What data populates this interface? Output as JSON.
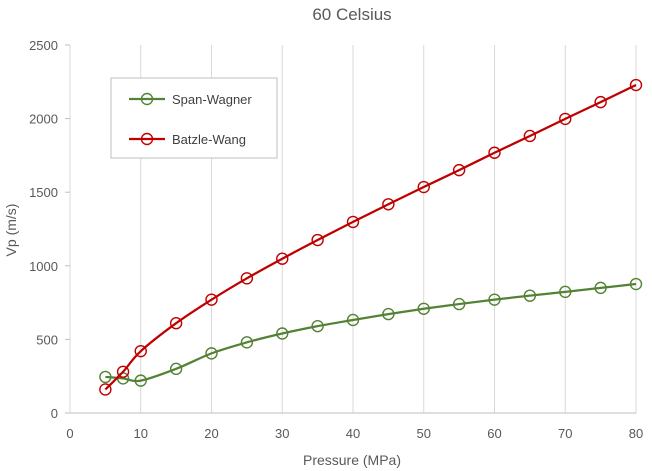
{
  "chart_data": {
    "type": "line",
    "title": "60 Celsius",
    "xlabel": "Pressure (MPa)",
    "ylabel": "Vp (m/s)",
    "xlim": [
      0,
      80
    ],
    "ylim": [
      0,
      2500
    ],
    "xticks": [
      0,
      10,
      20,
      30,
      40,
      50,
      60,
      70,
      80
    ],
    "yticks": [
      0,
      500,
      1000,
      1500,
      2000,
      2500
    ],
    "grid": "vertical",
    "legend": "top-left",
    "series": [
      {
        "name": "Span-Wagner",
        "color": "#548235",
        "marker": "open-circle",
        "x": [
          5,
          7.5,
          10,
          15,
          20,
          25,
          30,
          35,
          40,
          45,
          50,
          55,
          60,
          65,
          70,
          75,
          80
        ],
        "values": [
          245,
          235,
          220,
          300,
          405,
          480,
          540,
          590,
          632,
          672,
          708,
          740,
          770,
          797,
          823,
          850,
          876
        ]
      },
      {
        "name": "Batzle-Wang",
        "color": "#C00000",
        "marker": "open-circle",
        "x": [
          5,
          7.5,
          10,
          15,
          20,
          25,
          30,
          35,
          40,
          45,
          50,
          55,
          60,
          65,
          70,
          75,
          80
        ],
        "values": [
          160,
          280,
          420,
          610,
          770,
          915,
          1048,
          1175,
          1298,
          1418,
          1535,
          1650,
          1768,
          1882,
          1998,
          2112,
          2228
        ]
      }
    ]
  }
}
